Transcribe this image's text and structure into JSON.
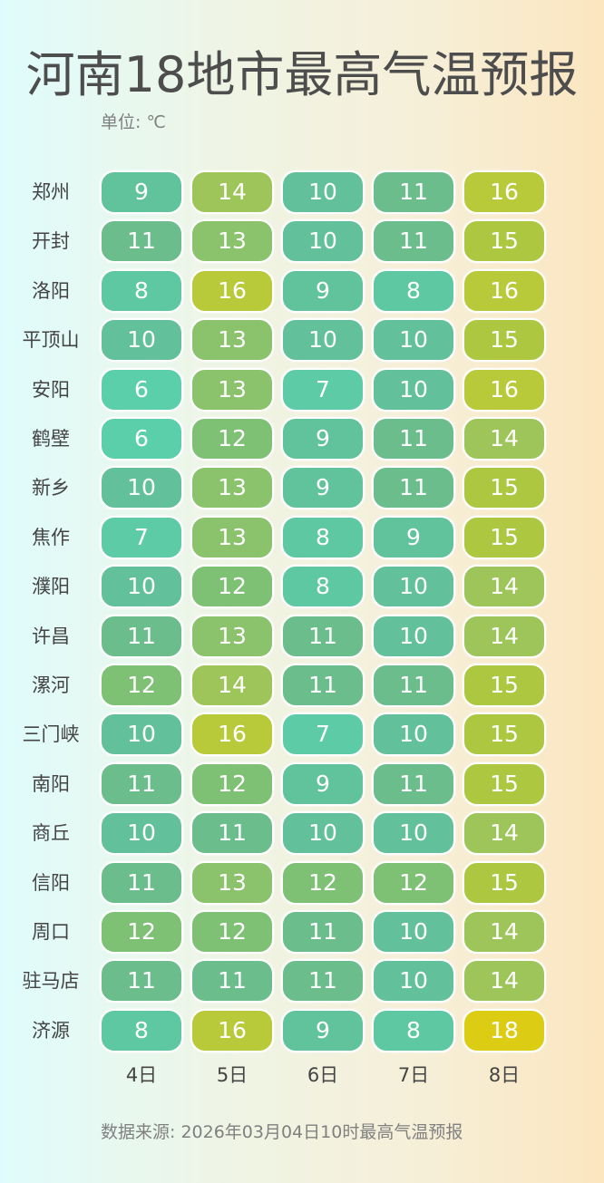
{
  "title": "河南18地市最高气温预报",
  "unit": "单位: ℃",
  "footer": "数据来源: 2026年03月04日10时最高气温预报",
  "days": [
    "4日",
    "5日",
    "6日",
    "7日",
    "8日"
  ],
  "cities": [
    "郑州",
    "开封",
    "洛阳",
    "平顶山",
    "安阳",
    "鹤壁",
    "新乡",
    "焦作",
    "濮阳",
    "许昌",
    "漯河",
    "三门峡",
    "南阳",
    "商丘",
    "信阳",
    "周口",
    "驻马店",
    "济源"
  ],
  "values": [
    [
      9,
      14,
      10,
      11,
      16
    ],
    [
      11,
      13,
      10,
      11,
      15
    ],
    [
      8,
      16,
      9,
      8,
      16
    ],
    [
      10,
      13,
      10,
      10,
      15
    ],
    [
      6,
      13,
      7,
      10,
      16
    ],
    [
      6,
      12,
      9,
      11,
      14
    ],
    [
      10,
      13,
      9,
      11,
      15
    ],
    [
      7,
      13,
      8,
      9,
      15
    ],
    [
      10,
      12,
      8,
      10,
      14
    ],
    [
      11,
      13,
      11,
      10,
      14
    ],
    [
      12,
      14,
      11,
      11,
      15
    ],
    [
      10,
      16,
      7,
      10,
      15
    ],
    [
      11,
      12,
      9,
      11,
      15
    ],
    [
      10,
      11,
      10,
      10,
      14
    ],
    [
      11,
      13,
      12,
      12,
      15
    ],
    [
      12,
      12,
      11,
      10,
      14
    ],
    [
      11,
      11,
      11,
      10,
      14
    ],
    [
      8,
      16,
      9,
      8,
      18
    ]
  ],
  "colors": {
    "6": "#5acfa9",
    "7": "#5dcca6",
    "8": "#5ec8a2",
    "9": "#60c39c",
    "10": "#62c19a",
    "11": "#6bbe8c",
    "12": "#7ec074",
    "13": "#8ac36c",
    "14": "#9ec55a",
    "15": "#adc740",
    "16": "#b8c93a",
    "18": "#dccc14"
  },
  "chart_data": {
    "type": "heatmap",
    "title": "河南18地市最高气温预报",
    "subtitle": "单位: ℃",
    "x": [
      "4日",
      "5日",
      "6日",
      "7日",
      "8日"
    ],
    "y": [
      "郑州",
      "开封",
      "洛阳",
      "平顶山",
      "安阳",
      "鹤壁",
      "新乡",
      "焦作",
      "濮阳",
      "许昌",
      "漯河",
      "三门峡",
      "南阳",
      "商丘",
      "信阳",
      "周口",
      "驻马店",
      "济源"
    ],
    "values": [
      [
        9,
        14,
        10,
        11,
        16
      ],
      [
        11,
        13,
        10,
        11,
        15
      ],
      [
        8,
        16,
        9,
        8,
        16
      ],
      [
        10,
        13,
        10,
        10,
        15
      ],
      [
        6,
        13,
        7,
        10,
        16
      ],
      [
        6,
        12,
        9,
        11,
        14
      ],
      [
        10,
        13,
        9,
        11,
        15
      ],
      [
        7,
        13,
        8,
        9,
        15
      ],
      [
        10,
        12,
        8,
        10,
        14
      ],
      [
        11,
        13,
        11,
        10,
        14
      ],
      [
        12,
        14,
        11,
        11,
        15
      ],
      [
        10,
        16,
        7,
        10,
        15
      ],
      [
        11,
        12,
        9,
        11,
        15
      ],
      [
        10,
        11,
        10,
        10,
        14
      ],
      [
        11,
        13,
        12,
        12,
        15
      ],
      [
        12,
        12,
        11,
        10,
        14
      ],
      [
        11,
        11,
        11,
        10,
        14
      ],
      [
        8,
        16,
        9,
        8,
        18
      ]
    ],
    "color_scale": "teal (low) → green → yellow (high)",
    "annotation": "数据来源: 2026年03月04日10时最高气温预报",
    "grid": false,
    "legend": "none"
  }
}
